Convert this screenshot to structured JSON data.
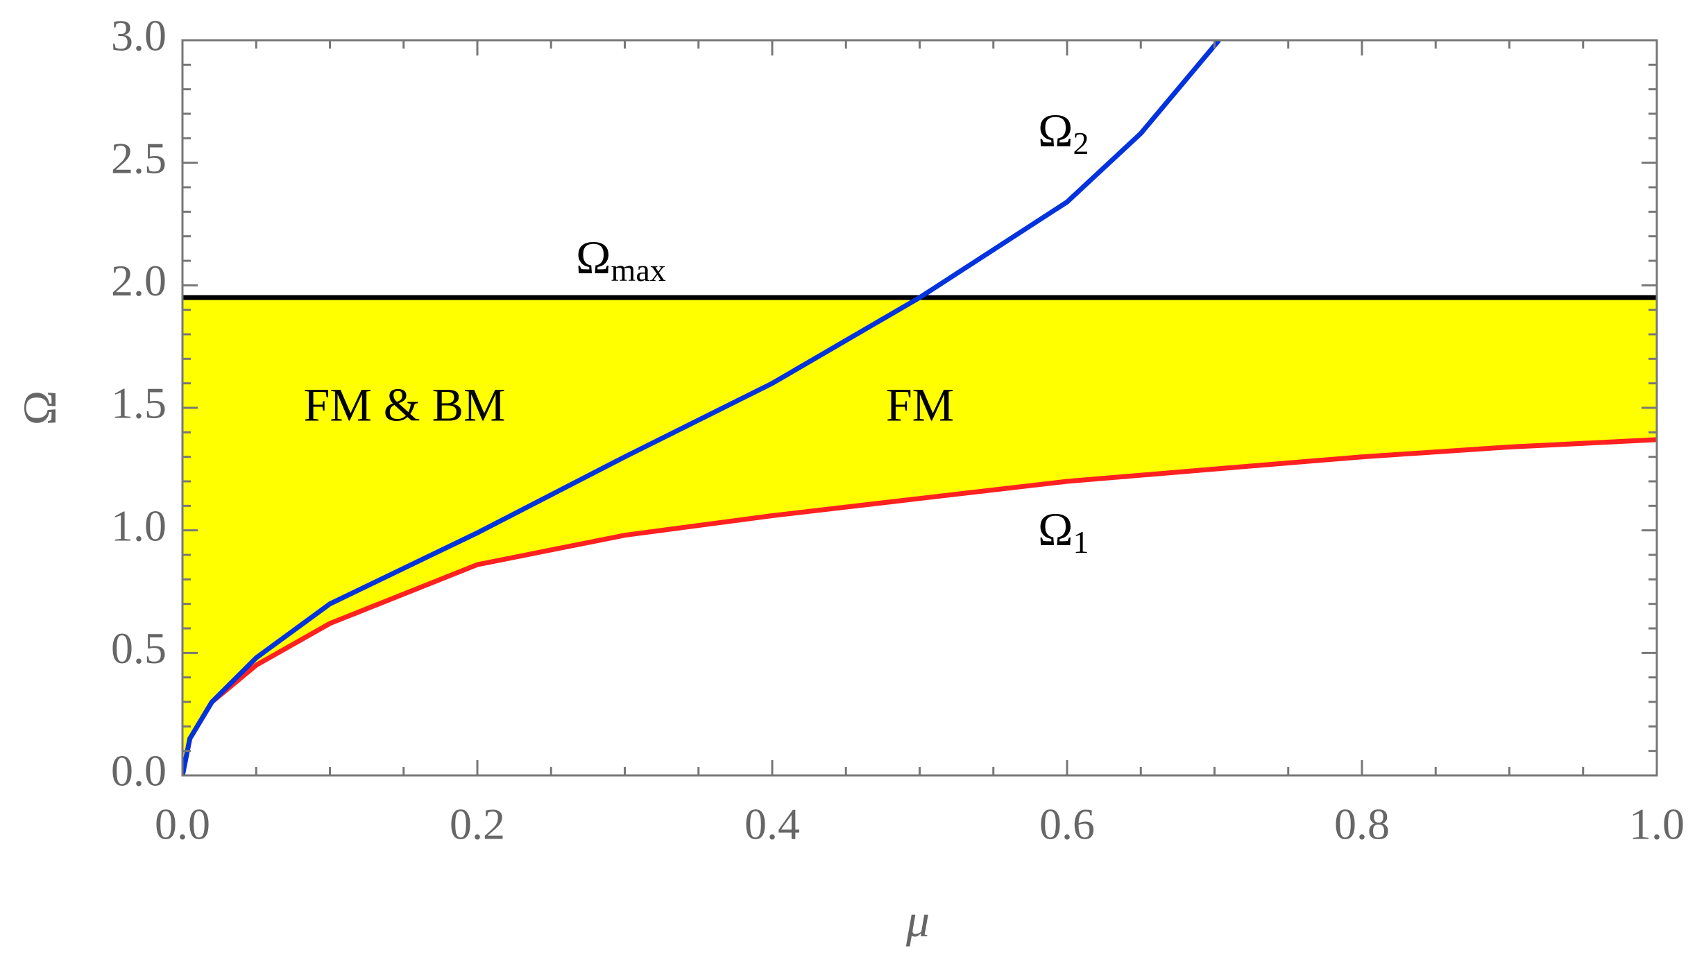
{
  "chart_data": {
    "type": "line",
    "xlabel": "μ",
    "ylabel": "Ω",
    "xlim": [
      0,
      1
    ],
    "ylim": [
      0,
      3
    ],
    "xticks": [
      {
        "value": 0,
        "label": "0.0"
      },
      {
        "value": 0.2,
        "label": "0.2"
      },
      {
        "value": 0.4,
        "label": "0.4"
      },
      {
        "value": 0.6,
        "label": "0.6"
      },
      {
        "value": 0.8,
        "label": "0.8"
      },
      {
        "value": 1,
        "label": "1.0"
      }
    ],
    "yticks": [
      {
        "value": 0,
        "label": "0.0"
      },
      {
        "value": 0.5,
        "label": "0.5"
      },
      {
        "value": 1,
        "label": "1.0"
      },
      {
        "value": 1.5,
        "label": "1.5"
      },
      {
        "value": 2,
        "label": "2.0"
      },
      {
        "value": 2.5,
        "label": "2.5"
      },
      {
        "value": 3,
        "label": "3.0"
      }
    ],
    "minor_divisions": {
      "x": 4,
      "y": 5
    },
    "fill_color": "#ffff00",
    "series": [
      {
        "name": "Ω",
        "sub": "max",
        "color": "#000000",
        "x": [
          0,
          1
        ],
        "values": [
          1.95,
          1.95
        ]
      },
      {
        "name": "Ω",
        "sub": "1",
        "color": "#ff2020",
        "x": [
          0,
          0.005,
          0.02,
          0.05,
          0.1,
          0.2,
          0.3,
          0.4,
          0.5,
          0.6,
          0.7,
          0.8,
          0.9,
          1
        ],
        "values": [
          0,
          0.15,
          0.3,
          0.45,
          0.62,
          0.86,
          0.98,
          1.06,
          1.13,
          1.2,
          1.25,
          1.3,
          1.34,
          1.37
        ]
      },
      {
        "name": "Ω",
        "sub": "2",
        "color": "#0033dd",
        "x": [
          0,
          0.005,
          0.02,
          0.05,
          0.1,
          0.2,
          0.3,
          0.4,
          0.5,
          0.6,
          0.65,
          0.703
        ],
        "values": [
          0,
          0.15,
          0.3,
          0.48,
          0.7,
          0.99,
          1.3,
          1.6,
          1.95,
          2.34,
          2.62,
          3.0
        ]
      }
    ],
    "annotations": [
      "FM & BM",
      "FM"
    ]
  }
}
